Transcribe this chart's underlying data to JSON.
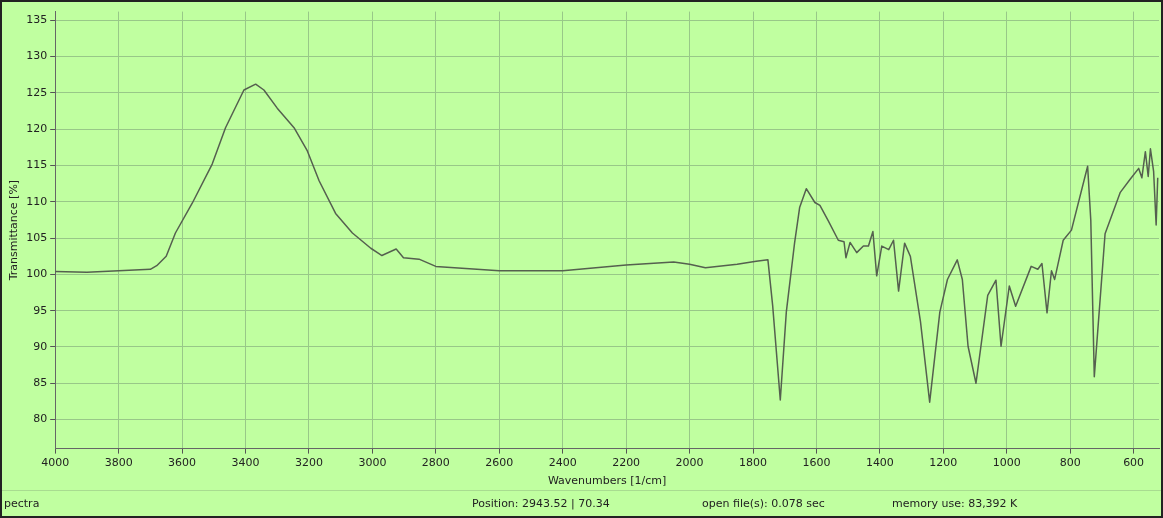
{
  "chart_data": {
    "type": "line",
    "xlabel": "Wavenumbers [1/cm]",
    "ylabel": "Transmittance [%]",
    "annotations": [
      "pectra",
      "Position: 2943.52 | 70.34",
      "open file(s): 0.078 sec",
      "memory use: 83,392 K"
    ],
    "x": [
      4000,
      3900,
      3800,
      3700,
      3680,
      3650,
      3621,
      3568,
      3505,
      3463,
      3405,
      3368,
      3342,
      3300,
      3247,
      3205,
      3168,
      3116,
      3063,
      3005,
      2970,
      2925,
      2902,
      2853,
      2800,
      2600,
      2400,
      2200,
      2050,
      2000,
      1950,
      1850,
      1790,
      1753,
      1738,
      1714,
      1695,
      1669,
      1653,
      1632,
      1605,
      1589,
      1563,
      1531,
      1513,
      1507,
      1494,
      1473,
      1452,
      1436,
      1422,
      1410,
      1394,
      1372,
      1357,
      1341,
      1322,
      1304,
      1272,
      1243,
      1211,
      1187,
      1156,
      1140,
      1122,
      1097,
      1060,
      1034,
      1018,
      992,
      972,
      923,
      902,
      889,
      873,
      859,
      849,
      822,
      796,
      745,
      735,
      724,
      690,
      642,
      611,
      584,
      574,
      563,
      554,
      547,
      537,
      529,
      524
    ],
    "series": [
      {
        "color": "#55604f",
        "values": [
          100.4,
          100.3,
          100.5,
          100.7,
          101.2,
          102.5,
          105.7,
          109.8,
          115.2,
          120.2,
          125.4,
          126.2,
          125.4,
          122.9,
          120.2,
          117,
          112.9,
          108.4,
          105.7,
          103.6,
          102.6,
          103.5,
          102.3,
          102.1,
          101.1,
          100.5,
          100.5,
          101.3,
          101.7,
          101.4,
          100.9,
          101.4,
          101.8,
          102,
          95.7,
          82.7,
          94.8,
          104.3,
          109.2,
          111.8,
          109.9,
          109.5,
          107.4,
          104.7,
          104.5,
          102.3,
          104.4,
          103,
          103.9,
          103.9,
          105.9,
          99.8,
          103.9,
          103.4,
          104.7,
          97.7,
          104.3,
          102.5,
          93.5,
          82.4,
          94.8,
          99.3,
          102,
          99.3,
          90.1,
          85,
          97.1,
          99.2,
          90.1,
          98.4,
          95.6,
          101.1,
          100.7,
          101.5,
          94.7,
          100.5,
          99.3,
          104.7,
          106.1,
          114.9,
          107.4,
          85.9,
          105.6,
          111.3,
          113.1,
          114.6,
          113.3,
          116.9,
          113.5,
          117.3,
          114.2,
          106.8,
          113.3
        ]
      }
    ],
    "xlim": [
      4000,
      520
    ],
    "ylim": [
      76,
      136.2
    ],
    "xticks": [
      4000,
      3800,
      3600,
      3400,
      3200,
      3000,
      2800,
      2600,
      2400,
      2200,
      2000,
      1800,
      1600,
      1400,
      1200,
      1000,
      800,
      600
    ],
    "yticks": [
      80,
      85,
      90,
      95,
      100,
      105,
      110,
      115,
      120,
      125,
      130,
      135
    ],
    "grid": true,
    "legend": false,
    "marker": "none",
    "line_style": "solid"
  }
}
